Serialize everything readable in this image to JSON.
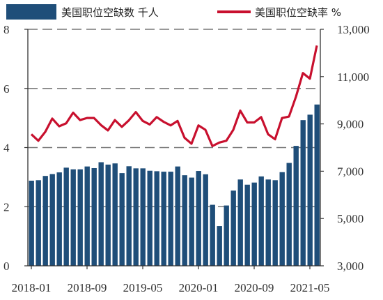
{
  "chart_data": {
    "type": "bar+line",
    "legend": {
      "bar_label": "美国职位空缺数 千人",
      "line_label": "美国职位空缺率 %",
      "placement": "top"
    },
    "x": [
      "2018-01",
      "2018-02",
      "2018-03",
      "2018-04",
      "2018-05",
      "2018-06",
      "2018-07",
      "2018-08",
      "2018-09",
      "2018-10",
      "2018-11",
      "2018-12",
      "2019-01",
      "2019-02",
      "2019-03",
      "2019-04",
      "2019-05",
      "2019-06",
      "2019-07",
      "2019-08",
      "2019-09",
      "2019-10",
      "2019-11",
      "2019-12",
      "2020-01",
      "2020-02",
      "2020-03",
      "2020-04",
      "2020-05",
      "2020-06",
      "2020-07",
      "2020-08",
      "2020-09",
      "2020-10",
      "2020-11",
      "2020-12",
      "2021-01",
      "2021-02",
      "2021-03",
      "2021-04",
      "2021-05",
      "2021-06"
    ],
    "x_tick_labels": [
      "2018-01",
      "2018-09",
      "2019-05",
      "2020-01",
      "2020-09",
      "2021-05"
    ],
    "x_tick_indices": [
      0,
      8,
      16,
      24,
      32,
      40
    ],
    "series": [
      {
        "name": "美国职位空缺数 千人",
        "type": "bar",
        "axis": "right",
        "color": "#1f4e79",
        "values": [
          6600,
          6620,
          6800,
          6880,
          6950,
          7150,
          7080,
          7080,
          7200,
          7130,
          7380,
          7280,
          7330,
          6920,
          7210,
          7120,
          7120,
          7020,
          7000,
          6980,
          6980,
          7200,
          6830,
          6730,
          7010,
          6870,
          5580,
          4680,
          5550,
          6180,
          6650,
          6430,
          6520,
          6780,
          6650,
          6620,
          6960,
          7350,
          8070,
          9160,
          9390,
          9820
        ]
      },
      {
        "name": "美国职位空缺率 %",
        "type": "line",
        "axis": "left",
        "color": "#c8102e",
        "values": [
          4.45,
          4.23,
          4.53,
          4.98,
          4.72,
          4.82,
          5.18,
          4.93,
          5.0,
          5.0,
          4.76,
          4.58,
          4.93,
          4.7,
          4.92,
          5.2,
          4.9,
          4.78,
          5.03,
          4.87,
          4.75,
          4.9,
          4.33,
          4.13,
          4.75,
          4.6,
          4.05,
          4.17,
          4.23,
          4.6,
          5.25,
          4.85,
          4.85,
          5.03,
          4.45,
          4.28,
          5.0,
          5.05,
          5.72,
          6.52,
          6.33,
          7.45
        ]
      }
    ],
    "left_axis": {
      "ylim": [
        0,
        8
      ],
      "ticks": [
        "0",
        "2",
        "4",
        "6",
        "8"
      ]
    },
    "right_axis": {
      "ylim": [
        3000,
        13000
      ],
      "ticks": [
        "3,000",
        "5,000",
        "7,000",
        "9,000",
        "11,000",
        "13,000"
      ]
    },
    "grid": {
      "horizontal": "dashed"
    }
  }
}
